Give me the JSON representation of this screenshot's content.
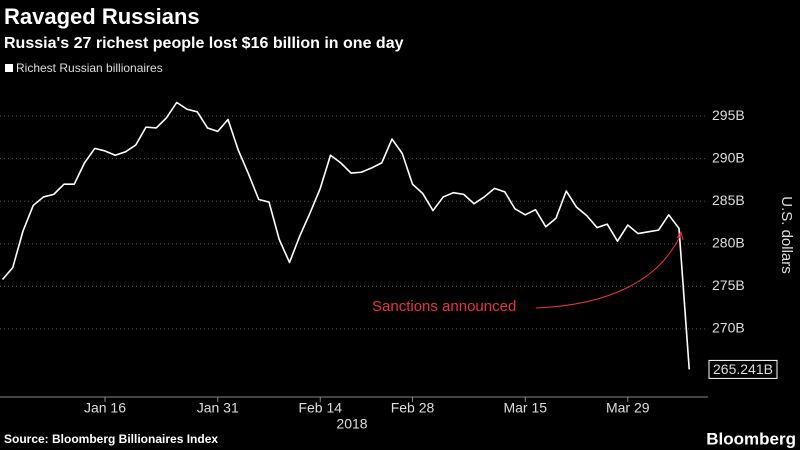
{
  "chart_data": {
    "type": "line",
    "title": "Ravaged Russians",
    "subtitle": "Russia's 27 richest people lost $16 billion in one day",
    "ylabel": "U.S. dollars",
    "xlabel": "2018",
    "source": "Source: Bloomberg Billionaires Index",
    "brand": "Bloomberg",
    "annotation": "Sanctions announced",
    "annotation_color": "#e8324b",
    "grid": true,
    "ylim": [
      262,
      299
    ],
    "yticks": [
      {
        "value": 270,
        "label": "270B"
      },
      {
        "value": 275,
        "label": "275B"
      },
      {
        "value": 280,
        "label": "280B"
      },
      {
        "value": 285,
        "label": "285B"
      },
      {
        "value": 290,
        "label": "290B"
      },
      {
        "value": 295,
        "label": "295B"
      }
    ],
    "categories": [
      null,
      null,
      null,
      null,
      null,
      null,
      null,
      null,
      null,
      null,
      "Jan 16",
      null,
      null,
      null,
      null,
      null,
      null,
      null,
      null,
      null,
      null,
      "Jan 31",
      null,
      null,
      null,
      null,
      null,
      null,
      null,
      null,
      null,
      "Feb 14",
      null,
      null,
      null,
      null,
      null,
      null,
      null,
      null,
      "Feb 28",
      null,
      null,
      null,
      null,
      null,
      null,
      null,
      null,
      null,
      null,
      "Mar 15",
      null,
      null,
      null,
      null,
      null,
      null,
      null,
      null,
      null,
      "Mar 29",
      null,
      null,
      null,
      null,
      null,
      null
    ],
    "series": [
      {
        "name": "Richest Russian billionaires",
        "color": "#ffffff",
        "values": [
          275.8,
          277.2,
          281.5,
          284.5,
          285.5,
          285.8,
          287.0,
          287.0,
          289.5,
          291.2,
          290.9,
          290.4,
          290.8,
          291.6,
          293.7,
          293.6,
          294.8,
          296.6,
          295.8,
          295.5,
          293.6,
          293.2,
          294.6,
          291.0,
          288.2,
          285.2,
          284.9,
          280.5,
          277.8,
          280.9,
          283.6,
          286.5,
          290.4,
          289.5,
          288.3,
          288.4,
          288.9,
          289.5,
          292.3,
          290.6,
          287.0,
          285.9,
          283.9,
          285.5,
          286.0,
          285.8,
          284.7,
          285.5,
          286.5,
          286.1,
          284.1,
          283.4,
          284.0,
          282.0,
          283.0,
          286.2,
          284.3,
          283.3,
          281.9,
          282.3,
          280.3,
          282.2,
          281.2,
          281.4,
          281.6,
          283.4,
          281.8,
          265.241
        ],
        "value_labels": [
          null,
          null,
          null,
          null,
          null,
          null,
          null,
          null,
          null,
          null,
          null,
          null,
          null,
          null,
          null,
          null,
          null,
          null,
          null,
          null,
          null,
          null,
          null,
          null,
          null,
          null,
          null,
          null,
          null,
          null,
          null,
          null,
          null,
          null,
          null,
          null,
          null,
          null,
          null,
          null,
          null,
          null,
          null,
          null,
          null,
          null,
          null,
          null,
          null,
          null,
          null,
          null,
          null,
          null,
          null,
          null,
          null,
          null,
          null,
          null,
          null,
          null,
          null,
          null,
          null,
          null,
          null,
          "265.241B"
        ]
      }
    ]
  }
}
